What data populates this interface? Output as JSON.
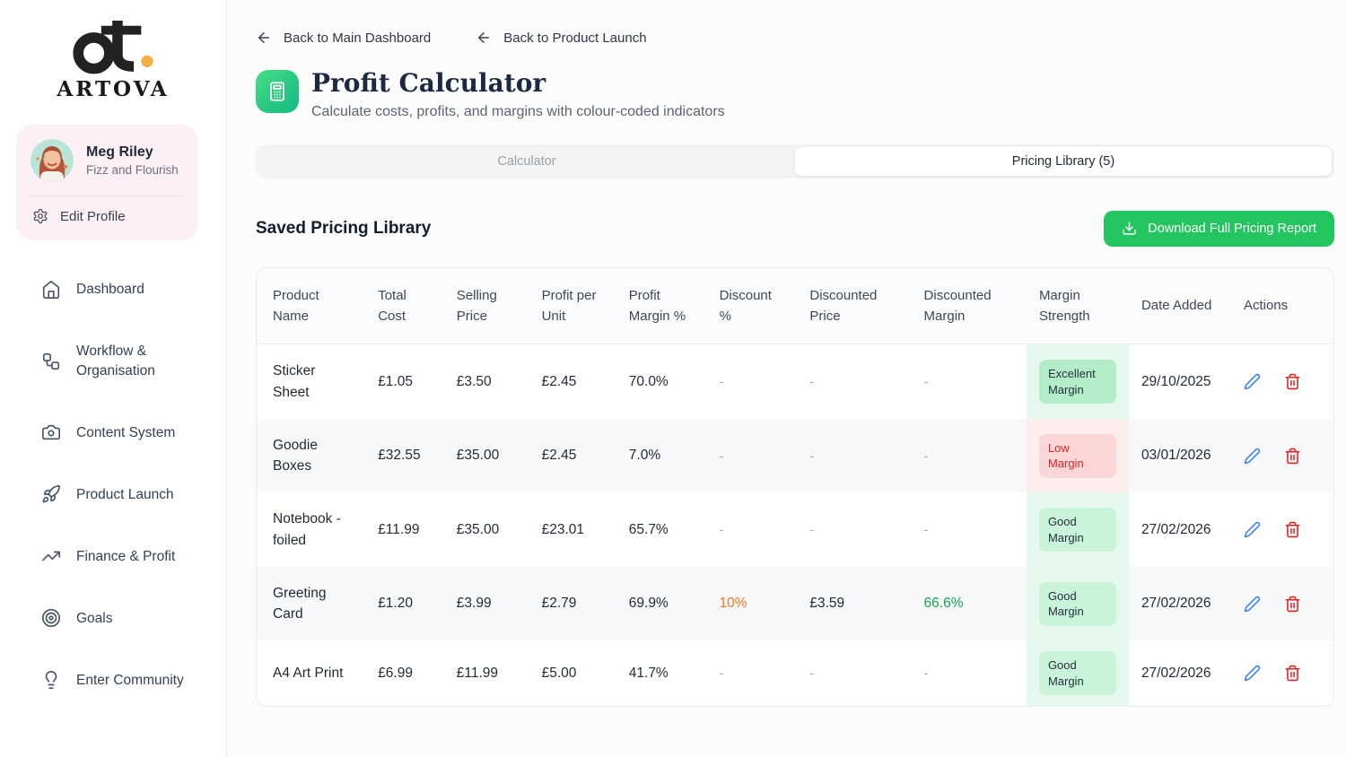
{
  "brand": {
    "name": "ARTOVA",
    "logo_dot_color": "#f0b13e"
  },
  "sidebar": {
    "profile": {
      "name": "Meg Riley",
      "business": "Fizz and Flourish",
      "edit_label": "Edit Profile"
    },
    "nav": [
      {
        "label": "Dashboard",
        "icon": "home-icon"
      },
      {
        "label": "Workflow & Organisation",
        "icon": "workflow-icon"
      },
      {
        "label": "Content System",
        "icon": "camera-icon"
      },
      {
        "label": "Product Launch",
        "icon": "rocket-icon"
      },
      {
        "label": "Finance & Profit",
        "icon": "trending-up-icon"
      },
      {
        "label": "Goals",
        "icon": "target-icon"
      },
      {
        "label": "Enter Community",
        "icon": "lightbulb-icon"
      }
    ]
  },
  "header": {
    "back_links": [
      {
        "label": "Back to Main Dashboard",
        "icon": "arrow-left-icon"
      },
      {
        "label": "Back to Product Launch",
        "icon": "arrow-left-icon"
      }
    ],
    "title": "Profit Calculator",
    "subtitle": "Calculate costs, profits, and margins with colour-coded indicators",
    "title_icon": "calculator-icon"
  },
  "tabs": [
    {
      "label": "Calculator",
      "active": false
    },
    {
      "label": "Pricing Library (5)",
      "active": true
    }
  ],
  "library": {
    "heading": "Saved Pricing Library",
    "download_button_label": "Download Full Pricing Report",
    "table": {
      "columns": [
        "Product Name",
        "Total Cost",
        "Selling Price",
        "Profit per Unit",
        "Profit Margin %",
        "Discount %",
        "Discounted Price",
        "Discounted Margin",
        "Margin Strength",
        "Date Added",
        "Actions"
      ],
      "rows": [
        {
          "product": "Sticker Sheet",
          "total_cost": "£1.05",
          "selling_price": "£3.50",
          "profit_per_unit": "£2.45",
          "profit_margin": "70.0%",
          "discount": "-",
          "discounted_price": "-",
          "discounted_margin": "-",
          "margin_strength": {
            "label": "Excellent Margin",
            "variant": "excellent"
          },
          "date_added": "29/10/2025"
        },
        {
          "product": "Goodie Boxes",
          "total_cost": "£32.55",
          "selling_price": "£35.00",
          "profit_per_unit": "£2.45",
          "profit_margin": "7.0%",
          "discount": "-",
          "discounted_price": "-",
          "discounted_margin": "-",
          "margin_strength": {
            "label": "Low Margin",
            "variant": "low"
          },
          "date_added": "03/01/2026"
        },
        {
          "product": "Notebook - foiled",
          "total_cost": "£11.99",
          "selling_price": "£35.00",
          "profit_per_unit": "£23.01",
          "profit_margin": "65.7%",
          "discount": "-",
          "discounted_price": "-",
          "discounted_margin": "-",
          "margin_strength": {
            "label": "Good Margin",
            "variant": "good"
          },
          "date_added": "27/02/2026"
        },
        {
          "product": "Greeting Card",
          "total_cost": "£1.20",
          "selling_price": "£3.99",
          "profit_per_unit": "£2.79",
          "profit_margin": "69.9%",
          "discount": "10%",
          "discounted_price": "£3.59",
          "discounted_margin": "66.6%",
          "margin_strength": {
            "label": "Good Margin",
            "variant": "good"
          },
          "date_added": "27/02/2026"
        },
        {
          "product": "A4 Art Print",
          "total_cost": "£6.99",
          "selling_price": "£11.99",
          "profit_per_unit": "£5.00",
          "profit_margin": "41.7%",
          "discount": "-",
          "discounted_price": "-",
          "discounted_margin": "-",
          "margin_strength": {
            "label": "Good Margin",
            "variant": "good"
          },
          "date_added": "27/02/2026"
        }
      ]
    },
    "row_actions": {
      "edit": "pencil-icon",
      "delete": "trash-icon"
    }
  },
  "colors": {
    "accent_green": "#22c55e",
    "title_icon_gradient_start": "#47dd85",
    "title_icon_gradient_end": "#11b981",
    "badge_excellent_bg": "#b2edc8",
    "badge_good_bg": "#c9f4d9",
    "badge_low_bg": "#fbd6d6",
    "badge_low_text": "#dc2626",
    "strength_column_green": "#e6f8ee",
    "strength_column_red": "#fdeeed",
    "discount_orange": "#f97316",
    "discounted_margin_green": "#16a34a",
    "edit_icon_blue": "#3b82f6",
    "delete_icon_red": "#e02424",
    "profile_card_pink": "#fdf0f5"
  }
}
